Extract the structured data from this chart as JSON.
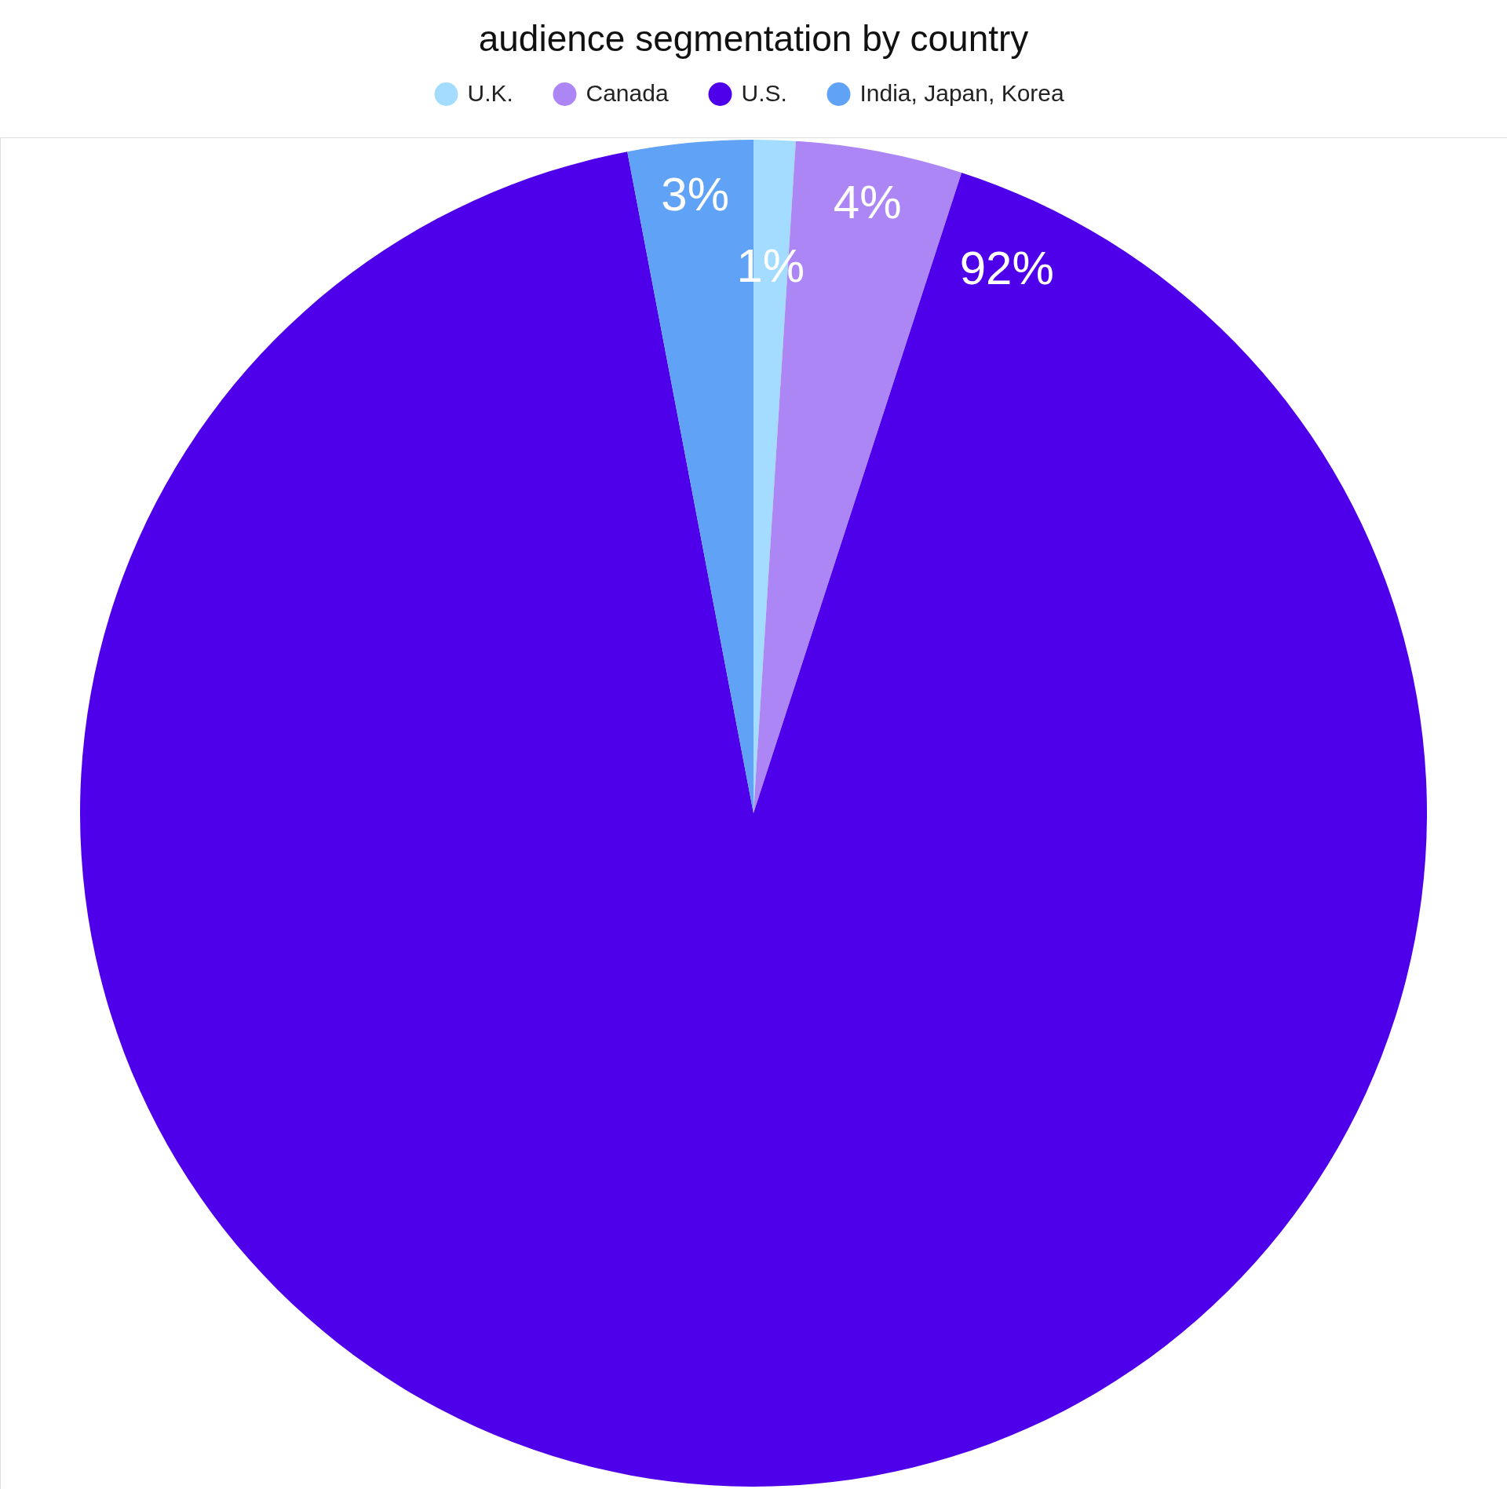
{
  "chart_data": {
    "type": "pie",
    "title": "audience segmentation by country",
    "categories": [
      "U.K.",
      "Canada",
      "U.S.",
      "India, Japan, Korea"
    ],
    "values": [
      1,
      4,
      92,
      3
    ],
    "colors": [
      "#a3dcfe",
      "#ad86f6",
      "#4f00eb",
      "#5fa2f6"
    ],
    "value_labels": [
      "1%",
      "4%",
      "92%",
      "3%"
    ],
    "legend": "top"
  }
}
